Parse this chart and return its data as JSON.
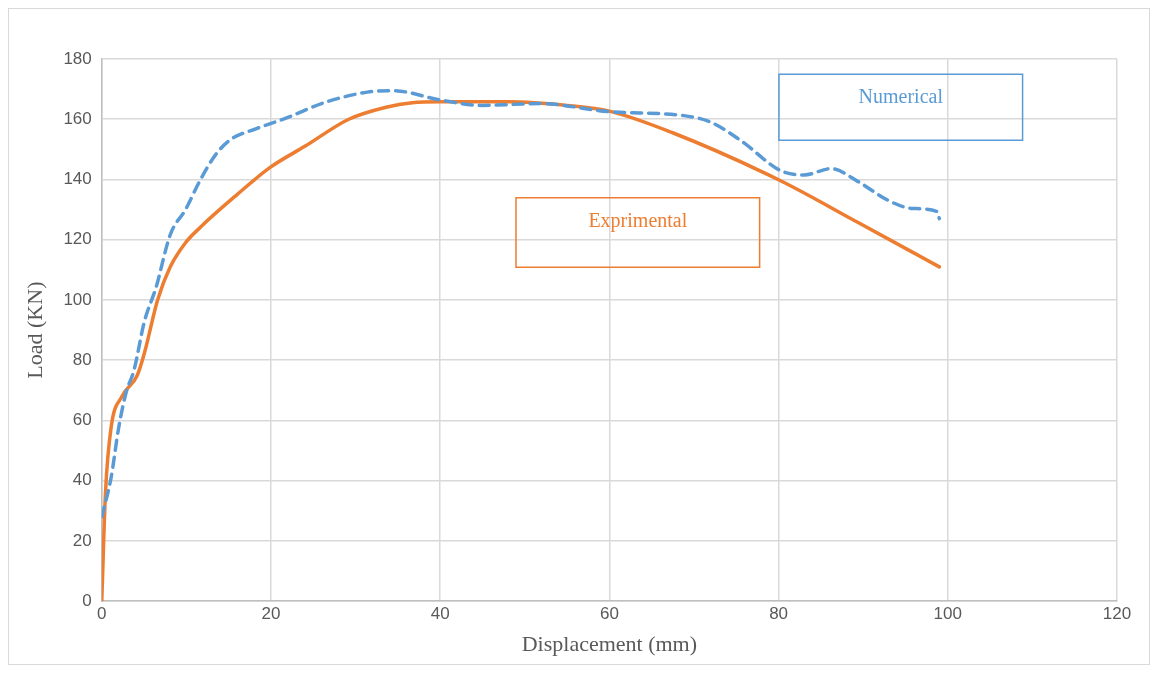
{
  "chart_data": {
    "type": "line",
    "xlabel": "Displacement (mm)",
    "ylabel": "Load (KN)",
    "xlim": [
      0,
      120
    ],
    "xticks": [
      0,
      20,
      40,
      60,
      80,
      100,
      120
    ],
    "ylim": [
      0,
      180
    ],
    "yticks": [
      0,
      20,
      40,
      60,
      80,
      100,
      120,
      140,
      160,
      180
    ],
    "grid": true,
    "marker": "none",
    "series": [
      {
        "name": "Numerical",
        "color": "#5b9bd5",
        "line_style": "dashed",
        "x": [
          0,
          1.1,
          2,
          2.9,
          3.8,
          5.05,
          6.4,
          8.1,
          9.9,
          11.6,
          13.4,
          15.1,
          18.2,
          21.7,
          26.5,
          31.4,
          34.4,
          40,
          44.9,
          51.8,
          60,
          68.8,
          72,
          75.6,
          80.2,
          83,
          86.2,
          89.4,
          93,
          95.8,
          98.7,
          99
        ],
        "values": [
          28,
          41,
          57.6,
          69.5,
          76.6,
          93,
          104,
          121.7,
          130,
          139.6,
          148,
          153,
          156.8,
          160.3,
          165.7,
          169,
          169.5,
          166.4,
          164.6,
          165.2,
          162.5,
          161.2,
          159,
          152.8,
          143,
          141.5,
          143.6,
          139.3,
          133,
          130.4,
          129.4,
          127
        ]
      },
      {
        "name": "Exprimental",
        "color": "#ed7d31",
        "line_style": "solid",
        "x": [
          0,
          0.44,
          1.1,
          2.4,
          4.2,
          5.05,
          6.6,
          8.1,
          9.9,
          11.6,
          16,
          19.9,
          24,
          29.2,
          33.6,
          36.7,
          40,
          48.1,
          55,
          60,
          67.4,
          80,
          89.4,
          99
        ],
        "values": [
          0,
          36,
          57.6,
          68,
          75,
          82.5,
          100,
          111,
          119,
          124,
          135,
          144,
          151,
          160,
          164,
          165.5,
          165.8,
          165.8,
          164.6,
          162.7,
          155.6,
          139.9,
          125.7,
          111
        ]
      }
    ]
  }
}
